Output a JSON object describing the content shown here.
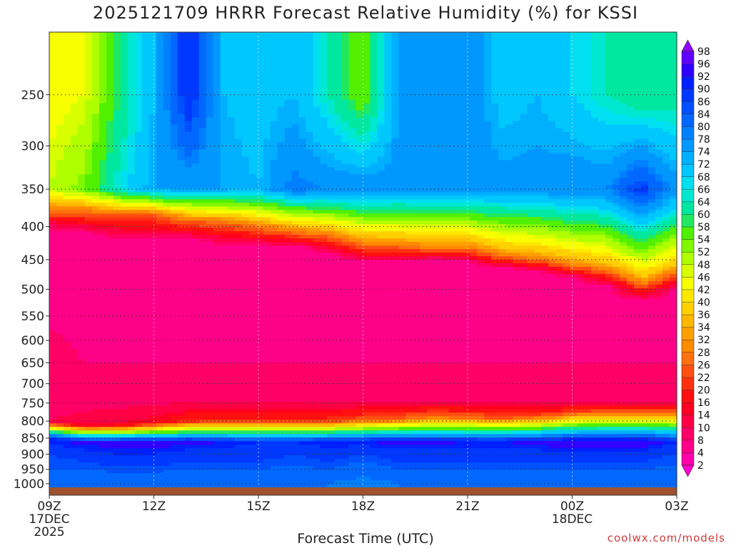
{
  "chart_data": {
    "type": "heatmap",
    "title": "2025121709 HRRR Forecast Relative Humidity (%) for KSSI",
    "xlabel": "Forecast Time (UTC)",
    "ylabel": "",
    "x_ticks": [
      {
        "hour": 0,
        "label": "09Z",
        "sub": [
          "17DEC",
          "2025"
        ]
      },
      {
        "hour": 3,
        "label": "12Z",
        "sub": []
      },
      {
        "hour": 6,
        "label": "15Z",
        "sub": []
      },
      {
        "hour": 9,
        "label": "18Z",
        "sub": []
      },
      {
        "hour": 12,
        "label": "21Z",
        "sub": []
      },
      {
        "hour": 15,
        "label": "00Z",
        "sub": [
          "18DEC"
        ]
      },
      {
        "hour": 18,
        "label": "03Z",
        "sub": []
      }
    ],
    "xlim_hours": [
      0,
      18
    ],
    "y_ticks": [
      250,
      300,
      350,
      400,
      450,
      500,
      550,
      600,
      650,
      700,
      750,
      800,
      850,
      900,
      950,
      1000
    ],
    "ylim_hPa": [
      200,
      1013
    ],
    "y_scale": "log-pressure",
    "grid": true,
    "colorbar_levels": [
      2,
      4,
      8,
      10,
      14,
      16,
      20,
      22,
      26,
      28,
      32,
      34,
      36,
      40,
      42,
      46,
      48,
      52,
      54,
      58,
      60,
      64,
      66,
      68,
      72,
      74,
      78,
      80,
      84,
      86,
      90,
      92,
      96,
      98
    ],
    "colorbar_colors": [
      "#ff00cc",
      "#ff00aa",
      "#ff0088",
      "#ff0066",
      "#ff0044",
      "#ff0022",
      "#ff1010",
      "#ff3010",
      "#ff5010",
      "#ff7010",
      "#ff8a00",
      "#ffa000",
      "#ffb800",
      "#ffd000",
      "#ffe800",
      "#f8ff00",
      "#d8ff00",
      "#b0ff00",
      "#80f800",
      "#50f000",
      "#20e860",
      "#00e8a0",
      "#00e8d0",
      "#00e0f0",
      "#00c8ff",
      "#00b0ff",
      "#0098ff",
      "#0080ff",
      "#0068ff",
      "#0050ff",
      "#0038ff",
      "#0020ff",
      "#3000ff",
      "#6000ff",
      "#9000ff"
    ],
    "hours": [
      0,
      1,
      2,
      3,
      4,
      5,
      6,
      7,
      8,
      9,
      10,
      11,
      12,
      13,
      14,
      15,
      16,
      17,
      18
    ],
    "profiles": [
      {
        "p": [
          250,
          350,
          375,
          400,
          500,
          650,
          740,
          800,
          850,
          900,
          1000
        ],
        "rh": [
          44,
          48,
          30,
          8,
          6,
          10,
          8,
          10,
          92,
          86,
          82
        ]
      },
      {
        "p": [
          250,
          350,
          380,
          410,
          500,
          650,
          740,
          810,
          860,
          900,
          1000
        ],
        "rh": [
          46,
          54,
          26,
          6,
          6,
          8,
          8,
          12,
          94,
          88,
          80
        ]
      },
      {
        "p": [
          250,
          350,
          385,
          420,
          500,
          650,
          740,
          810,
          860,
          900,
          1000
        ],
        "rh": [
          60,
          66,
          24,
          6,
          6,
          8,
          8,
          14,
          94,
          90,
          80
        ]
      },
      {
        "p": [
          250,
          350,
          385,
          420,
          500,
          650,
          740,
          805,
          860,
          900,
          1000
        ],
        "rh": [
          72,
          74,
          24,
          6,
          4,
          8,
          8,
          16,
          94,
          90,
          80
        ]
      },
      {
        "p": [
          250,
          350,
          395,
          420,
          500,
          650,
          740,
          800,
          860,
          900,
          1000
        ],
        "rh": [
          90,
          74,
          24,
          6,
          4,
          8,
          8,
          20,
          94,
          88,
          80
        ]
      },
      {
        "p": [
          250,
          350,
          395,
          430,
          500,
          650,
          740,
          800,
          860,
          900,
          1000
        ],
        "rh": [
          72,
          74,
          26,
          6,
          4,
          8,
          8,
          22,
          92,
          88,
          80
        ]
      },
      {
        "p": [
          250,
          350,
          400,
          430,
          500,
          650,
          740,
          800,
          860,
          900,
          1000
        ],
        "rh": [
          70,
          72,
          28,
          6,
          4,
          8,
          8,
          22,
          90,
          88,
          80
        ]
      },
      {
        "p": [
          250,
          350,
          405,
          430,
          500,
          650,
          740,
          800,
          860,
          900,
          1000
        ],
        "rh": [
          72,
          80,
          30,
          6,
          6,
          8,
          8,
          22,
          90,
          86,
          80
        ]
      },
      {
        "p": [
          250,
          350,
          410,
          440,
          500,
          650,
          740,
          800,
          860,
          900,
          1000
        ],
        "rh": [
          64,
          78,
          30,
          6,
          6,
          8,
          8,
          22,
          92,
          88,
          80
        ]
      },
      {
        "p": [
          250,
          350,
          420,
          455,
          500,
          650,
          740,
          795,
          860,
          900,
          1000
        ],
        "rh": [
          54,
          78,
          32,
          6,
          6,
          8,
          8,
          24,
          92,
          86,
          78
        ]
      },
      {
        "p": [
          250,
          350,
          425,
          455,
          500,
          650,
          740,
          795,
          860,
          900,
          1000
        ],
        "rh": [
          74,
          76,
          30,
          6,
          6,
          8,
          8,
          26,
          94,
          88,
          80
        ]
      },
      {
        "p": [
          250,
          350,
          430,
          450,
          500,
          650,
          740,
          790,
          860,
          900,
          1000
        ],
        "rh": [
          74,
          76,
          30,
          6,
          6,
          8,
          8,
          28,
          94,
          88,
          80
        ]
      },
      {
        "p": [
          250,
          350,
          430,
          455,
          500,
          650,
          740,
          790,
          860,
          900,
          1000
        ],
        "rh": [
          78,
          76,
          30,
          6,
          6,
          8,
          8,
          26,
          92,
          88,
          80
        ]
      },
      {
        "p": [
          250,
          350,
          440,
          465,
          500,
          650,
          740,
          790,
          860,
          900,
          1000
        ],
        "rh": [
          70,
          76,
          32,
          6,
          6,
          8,
          8,
          24,
          92,
          88,
          80
        ]
      },
      {
        "p": [
          250,
          350,
          445,
          470,
          500,
          650,
          740,
          785,
          860,
          900,
          1000
        ],
        "rh": [
          72,
          76,
          32,
          6,
          6,
          8,
          8,
          22,
          94,
          88,
          80
        ]
      },
      {
        "p": [
          250,
          350,
          455,
          480,
          510,
          650,
          740,
          775,
          860,
          900,
          1000
        ],
        "rh": [
          68,
          78,
          32,
          6,
          6,
          8,
          8,
          22,
          96,
          88,
          80
        ]
      },
      {
        "p": [
          250,
          350,
          460,
          495,
          520,
          650,
          740,
          770,
          860,
          900,
          1000
        ],
        "rh": [
          64,
          78,
          34,
          6,
          6,
          8,
          8,
          22,
          96,
          88,
          80
        ]
      },
      {
        "p": [
          250,
          350,
          480,
          520,
          540,
          650,
          740,
          770,
          860,
          900,
          1000
        ],
        "rh": [
          60,
          88,
          36,
          6,
          6,
          8,
          8,
          22,
          96,
          88,
          80
        ]
      },
      {
        "p": [
          250,
          350,
          460,
          500,
          520,
          650,
          740,
          770,
          860,
          900,
          1000
        ],
        "rh": [
          62,
          76,
          36,
          6,
          6,
          8,
          8,
          22,
          90,
          86,
          80
        ]
      }
    ],
    "surface_color": "#a0522d"
  },
  "credit": "coolwx.com/models"
}
